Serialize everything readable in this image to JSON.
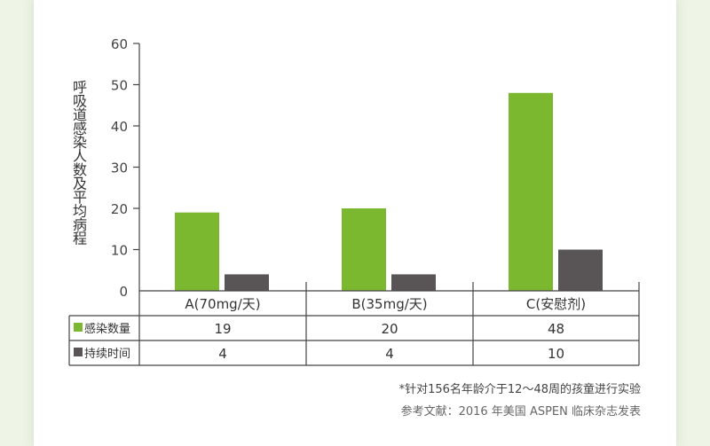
{
  "chart_data": {
    "type": "bar",
    "ylabel": "呼吸道感染人数及平均病程",
    "ylim": [
      0,
      60
    ],
    "yticks": [
      "0",
      "10",
      "20",
      "30",
      "40",
      "50",
      "60"
    ],
    "categories": [
      "A(70mg/天)",
      "B(35mg/天)",
      "C(安慰剂)"
    ],
    "series": [
      {
        "name": "感染数量",
        "values": [
          19,
          20,
          48
        ],
        "color": "#7cb82f"
      },
      {
        "name": "持续时间",
        "values": [
          4,
          4,
          10
        ],
        "color": "#595556"
      }
    ],
    "table": {
      "rows": [
        {
          "label": "感染数量",
          "cells": [
            "19",
            "20",
            "48"
          ]
        },
        {
          "label": "持续时间",
          "cells": [
            "4",
            "4",
            "10"
          ]
        }
      ]
    }
  },
  "footnote": "*针对156名年龄介于12～48周的孩童进行实验",
  "reference": "参考文献：2016 年美国 ASPEN 临床杂志发表"
}
